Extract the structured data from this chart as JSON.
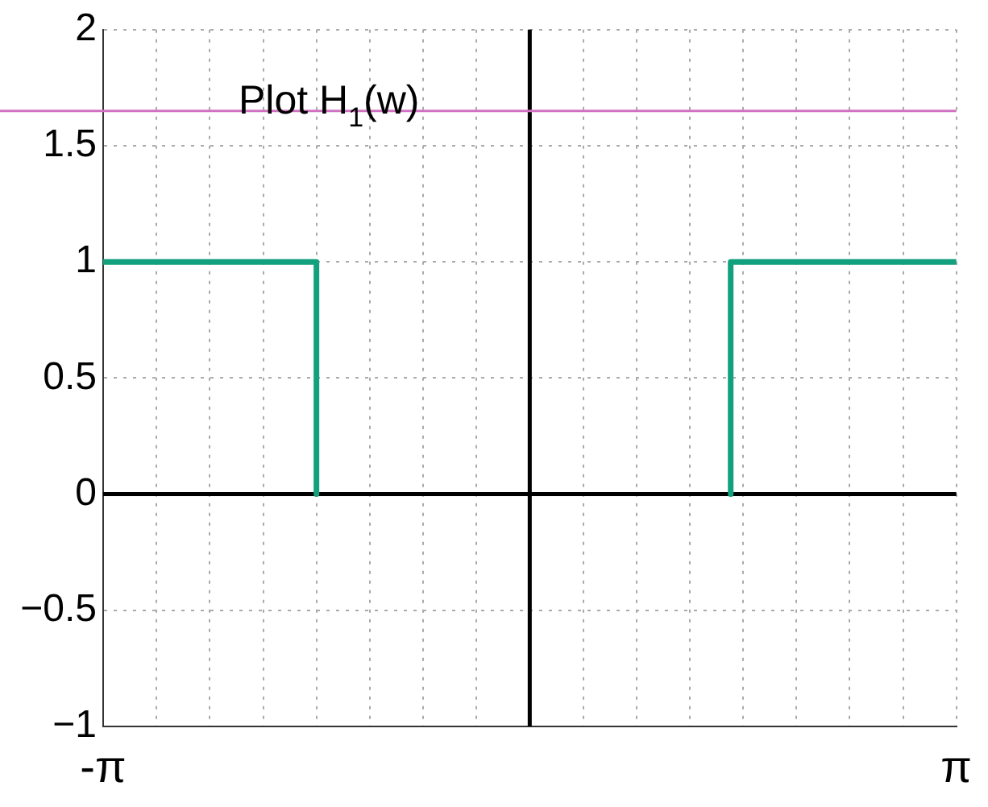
{
  "chart_data": {
    "type": "line",
    "annotations": [
      "Plot H$_{1}$(w)"
    ],
    "x": [
      -3.1416,
      -1.5708,
      -1.5708,
      null,
      1.48,
      1.48,
      3.1416
    ],
    "series": [
      {
        "color": "#12a07e",
        "values": [
          1,
          1,
          0,
          null,
          0,
          1,
          1
        ]
      }
    ],
    "xlim": [
      -3.1416,
      3.1416
    ],
    "xticks": [
      {
        "value": -3.1416,
        "label": "-π"
      },
      {
        "value": -2.7489,
        "label": null
      },
      {
        "value": -2.3562,
        "label": null
      },
      {
        "value": -1.9635,
        "label": null
      },
      {
        "value": -1.5708,
        "label": null
      },
      {
        "value": -1.1781,
        "label": null
      },
      {
        "value": -0.7854,
        "label": null
      },
      {
        "value": -0.3927,
        "label": null
      },
      {
        "value": 0,
        "label": null
      },
      {
        "value": 0.3927,
        "label": null
      },
      {
        "value": 0.7854,
        "label": null
      },
      {
        "value": 1.1781,
        "label": null
      },
      {
        "value": 1.5708,
        "label": null
      },
      {
        "value": 1.9635,
        "label": null
      },
      {
        "value": 2.3562,
        "label": null
      },
      {
        "value": 2.7489,
        "label": null
      },
      {
        "value": 3.1416,
        "label": "π"
      }
    ],
    "ylim": [
      -1,
      2
    ],
    "yticks": [
      {
        "value": -1,
        "label": "−1"
      },
      {
        "value": -0.5,
        "label": "−0.5"
      },
      0,
      0.5,
      1,
      1.5,
      2
    ],
    "ref_lines": [
      {
        "axis": "y",
        "value": 1.65,
        "color": "#d070c0"
      }
    ],
    "grid": true,
    "legend": false,
    "marker": "none",
    "line_style": "solid"
  }
}
